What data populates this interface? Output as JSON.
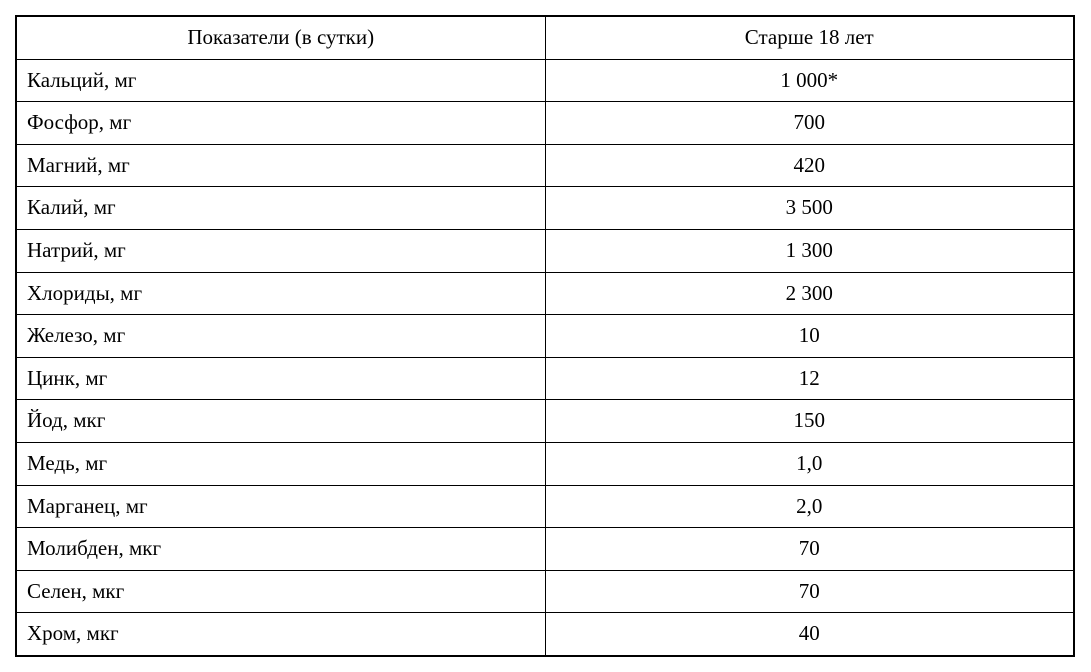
{
  "table": {
    "type": "table",
    "background_color": "#ffffff",
    "border_color": "#000000",
    "outer_border_width": 2.5,
    "inner_border_width": 1,
    "font_family": "Times New Roman",
    "header_fontsize": 21,
    "cell_fontsize": 21,
    "column_widths": [
      "50%",
      "50%"
    ],
    "column_alignment": [
      "left",
      "center"
    ],
    "header_alignment": [
      "center",
      "center"
    ],
    "columns": [
      "Показатели (в сутки)",
      "Старше 18 лет"
    ],
    "rows": [
      [
        "Кальций, мг",
        "1 000*"
      ],
      [
        "Фосфор, мг",
        "700"
      ],
      [
        "Магний, мг",
        "420"
      ],
      [
        "Калий, мг",
        "3 500"
      ],
      [
        "Натрий, мг",
        "1 300"
      ],
      [
        "Хлориды, мг",
        "2 300"
      ],
      [
        "Железо, мг",
        "10"
      ],
      [
        "Цинк, мг",
        "12"
      ],
      [
        "Йод, мкг",
        "150"
      ],
      [
        "Медь, мг",
        "1,0"
      ],
      [
        "Марганец, мг",
        "2,0"
      ],
      [
        "Молибден, мкг",
        "70"
      ],
      [
        "Селен, мкг",
        "70"
      ],
      [
        "Хром, мкг",
        "40"
      ]
    ]
  }
}
